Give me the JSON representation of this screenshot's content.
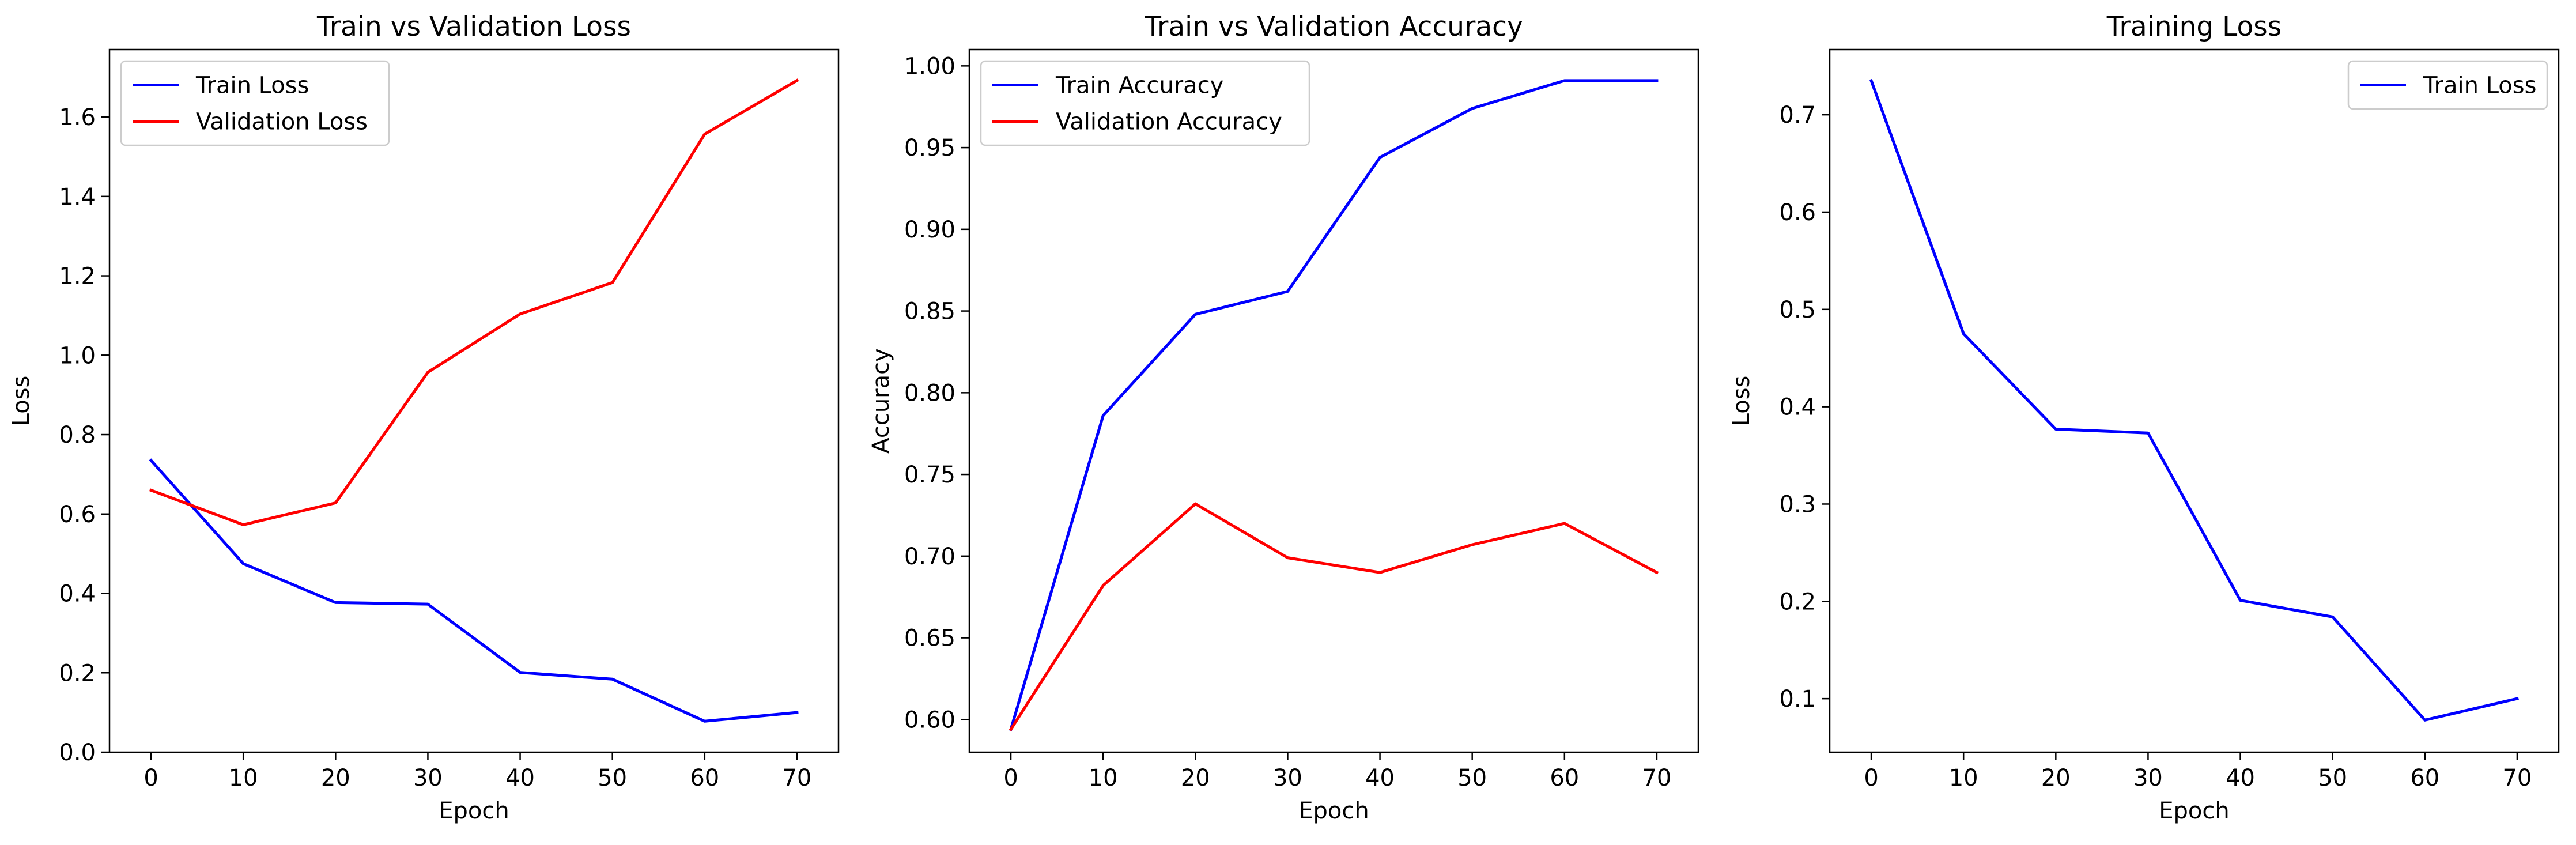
{
  "colors": {
    "train": "#0000ff",
    "validation": "#ff0000",
    "axis": "#000000"
  },
  "chart_data": [
    {
      "type": "line",
      "title": "Train vs Validation Loss",
      "xlabel": "Epoch",
      "ylabel": "Loss",
      "x": [
        0,
        10,
        20,
        30,
        40,
        50,
        60,
        70
      ],
      "xlim": [
        -4.5,
        74.5
      ],
      "ylim": [
        0.0,
        1.77
      ],
      "xticks": [
        0,
        10,
        20,
        30,
        40,
        50,
        60,
        70
      ],
      "xtick_labels": [
        "0",
        "10",
        "20",
        "30",
        "40",
        "50",
        "60",
        "70"
      ],
      "yticks": [
        0.0,
        0.2,
        0.4,
        0.6,
        0.8,
        1.0,
        1.2,
        1.4,
        1.6
      ],
      "ytick_labels": [
        "0.0",
        "0.2",
        "0.4",
        "0.6",
        "0.8",
        "1.0",
        "1.2",
        "1.4",
        "1.6"
      ],
      "grid": false,
      "legend": "upper-left",
      "series": [
        {
          "name": "Train Loss",
          "color": "#0000ff",
          "values": [
            0.735,
            0.475,
            0.377,
            0.373,
            0.201,
            0.184,
            0.078,
            0.1
          ]
        },
        {
          "name": "Validation Loss",
          "color": "#ff0000",
          "values": [
            0.66,
            0.573,
            0.628,
            0.957,
            1.104,
            1.183,
            1.557,
            1.692
          ]
        }
      ]
    },
    {
      "type": "line",
      "title": "Train vs Validation Accuracy",
      "xlabel": "Epoch",
      "ylabel": "Accuracy",
      "x": [
        0,
        10,
        20,
        30,
        40,
        50,
        60,
        70
      ],
      "xlim": [
        -4.5,
        74.5
      ],
      "ylim": [
        0.58,
        1.01
      ],
      "xticks": [
        0,
        10,
        20,
        30,
        40,
        50,
        60,
        70
      ],
      "xtick_labels": [
        "0",
        "10",
        "20",
        "30",
        "40",
        "50",
        "60",
        "70"
      ],
      "yticks": [
        0.6,
        0.65,
        0.7,
        0.75,
        0.8,
        0.85,
        0.9,
        0.95,
        1.0
      ],
      "ytick_labels": [
        "0.60",
        "0.65",
        "0.70",
        "0.75",
        "0.80",
        "0.85",
        "0.90",
        "0.95",
        "1.00"
      ],
      "grid": false,
      "legend": "upper-left",
      "series": [
        {
          "name": "Train Accuracy",
          "color": "#0000ff",
          "values": [
            0.594,
            0.786,
            0.848,
            0.862,
            0.944,
            0.974,
            0.991,
            0.991
          ]
        },
        {
          "name": "Validation Accuracy",
          "color": "#ff0000",
          "values": [
            0.594,
            0.682,
            0.732,
            0.699,
            0.69,
            0.707,
            0.72,
            0.69
          ]
        }
      ]
    },
    {
      "type": "line",
      "title": "Training Loss",
      "xlabel": "Epoch",
      "ylabel": "Loss",
      "x": [
        0,
        10,
        20,
        30,
        40,
        50,
        60,
        70
      ],
      "xlim": [
        -4.5,
        74.5
      ],
      "ylim": [
        0.045,
        0.767
      ],
      "xticks": [
        0,
        10,
        20,
        30,
        40,
        50,
        60,
        70
      ],
      "xtick_labels": [
        "0",
        "10",
        "20",
        "30",
        "40",
        "50",
        "60",
        "70"
      ],
      "yticks": [
        0.1,
        0.2,
        0.3,
        0.4,
        0.5,
        0.6,
        0.7
      ],
      "ytick_labels": [
        "0.1",
        "0.2",
        "0.3",
        "0.4",
        "0.5",
        "0.6",
        "0.7"
      ],
      "grid": false,
      "legend": "upper-right",
      "series": [
        {
          "name": "Train Loss",
          "color": "#0000ff",
          "values": [
            0.735,
            0.475,
            0.377,
            0.373,
            0.201,
            0.184,
            0.078,
            0.1
          ]
        }
      ]
    }
  ]
}
